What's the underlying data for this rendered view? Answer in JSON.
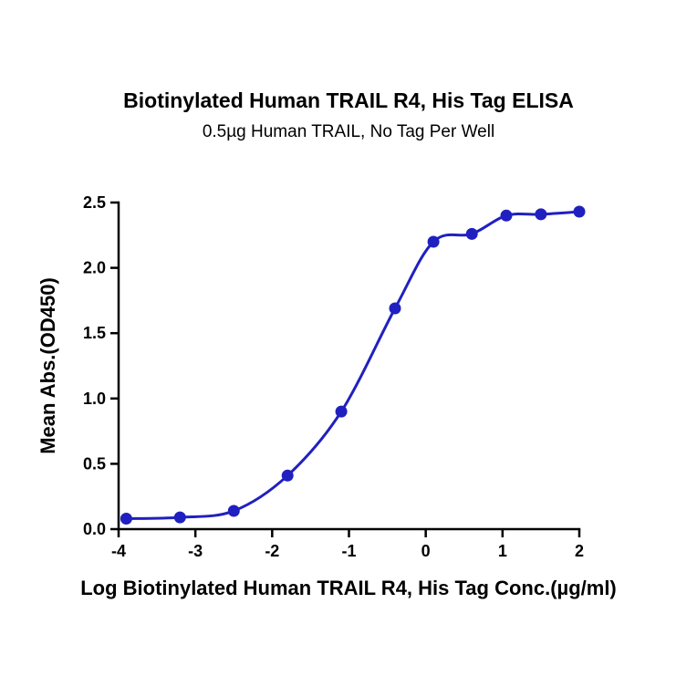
{
  "page": {
    "background": "#ffffff"
  },
  "chart_data": {
    "type": "scatter",
    "subtype": "4PL-fit-curve-with-points",
    "title": "Biotinylated Human TRAIL R4, His Tag ELISA",
    "subtitle": "0.5µg Human TRAIL, No Tag Per Well",
    "xlabel": "Log Biotinylated Human TRAIL R4, His Tag Conc.(µg/ml)",
    "ylabel": "Mean Abs.(OD450)",
    "xlim": [
      -4,
      2
    ],
    "ylim": [
      0,
      2.5
    ],
    "x_ticks": [
      -4,
      -3,
      -2,
      -1,
      0,
      1,
      2
    ],
    "y_ticks": [
      0.0,
      0.5,
      1.0,
      1.5,
      2.0,
      2.5
    ],
    "grid": false,
    "legend": null,
    "marker_color": "#2020C0",
    "line_color": "#2020C0",
    "axis_color": "#000000",
    "points": {
      "x": [
        -3.9,
        -3.2,
        -2.5,
        -1.8,
        -1.1,
        -0.4,
        0.1,
        0.6,
        1.05,
        1.5,
        2.0
      ],
      "y": [
        0.08,
        0.09,
        0.14,
        0.41,
        0.9,
        1.69,
        2.2,
        2.26,
        2.4,
        2.41,
        2.43
      ]
    }
  }
}
